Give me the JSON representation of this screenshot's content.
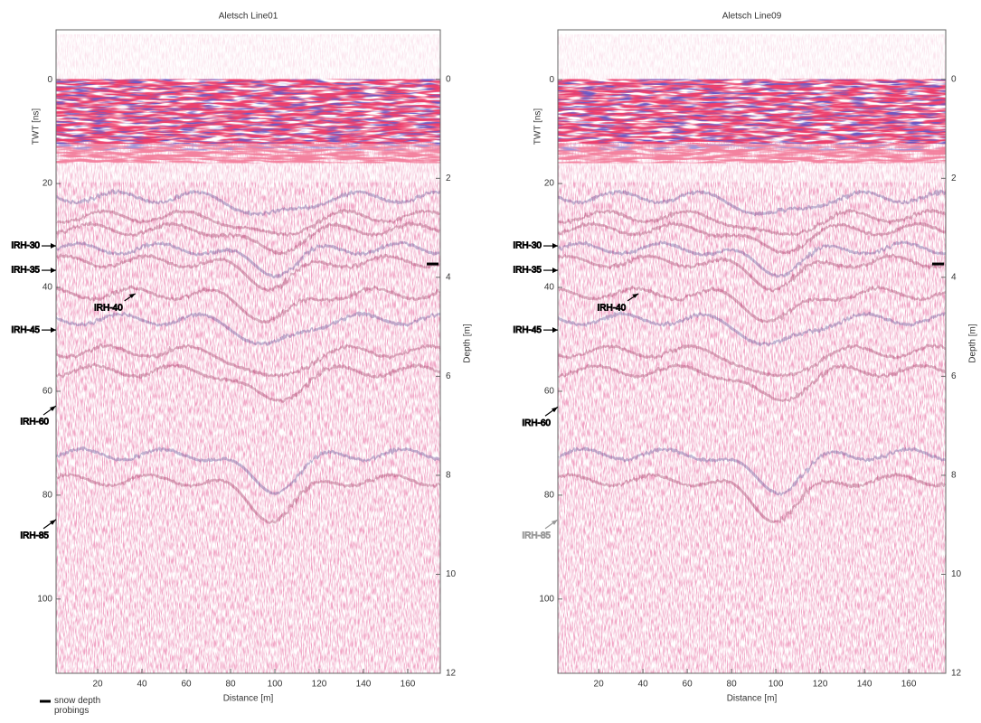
{
  "chart_data": [
    {
      "type": "radargram",
      "title": "Aletsch Line01",
      "xlabel": "Distance [m]",
      "ylabel": "TWT [ns]",
      "y2label": "Depth [m]",
      "xlim": [
        1.2,
        174.7
      ],
      "xticks": [
        20,
        40,
        60,
        80,
        100,
        120,
        140,
        160
      ],
      "ylim": [
        -9.6,
        114.3
      ],
      "yticks": [
        0,
        20,
        40,
        60,
        80,
        100
      ],
      "y2lim": [
        -1,
        12
      ],
      "y2ticks": [
        0,
        2,
        4,
        6,
        8,
        10,
        12
      ],
      "horizons": [
        {
          "label": "IRH-30",
          "twt": 32
        },
        {
          "label": "IRH-35",
          "twt": 36.7
        },
        {
          "label": "IRH-40",
          "twt": 41.2,
          "distance": 37
        },
        {
          "label": "IRH-45",
          "twt": 48.2
        },
        {
          "label": "IRH-60",
          "twt": 62.8
        },
        {
          "label": "IRH-85",
          "twt": 84.7
        }
      ],
      "snow_depth": 3.73,
      "legend": {
        "label": "snow depth probings"
      }
    },
    {
      "type": "radargram",
      "title": "Aletsch Line09",
      "xlabel": "Distance [m]",
      "ylabel": "TWT [ns]",
      "y2label": "Depth [m]",
      "xlim": [
        1.6,
        176.7
      ],
      "xticks": [
        20,
        40,
        60,
        80,
        100,
        120,
        140,
        160
      ],
      "ylim": [
        -9.6,
        114.3
      ],
      "yticks": [
        0,
        20,
        40,
        60,
        80,
        100
      ],
      "y2lim": [
        -1,
        12
      ],
      "y2ticks": [
        0,
        2,
        4,
        6,
        8,
        10,
        12
      ],
      "horizons": [
        {
          "label": "IRH-30",
          "twt": 32
        },
        {
          "label": "IRH-35",
          "twt": 36.7
        },
        {
          "label": "IRH-40",
          "twt": 41.2,
          "distance": 38
        },
        {
          "label": "IRH-45",
          "twt": 48.2
        },
        {
          "label": "IRH-60",
          "twt": 63
        },
        {
          "label": "IRH-85",
          "twt": 84.7,
          "color": "#999999"
        }
      ],
      "snow_depth": 3.73
    }
  ]
}
